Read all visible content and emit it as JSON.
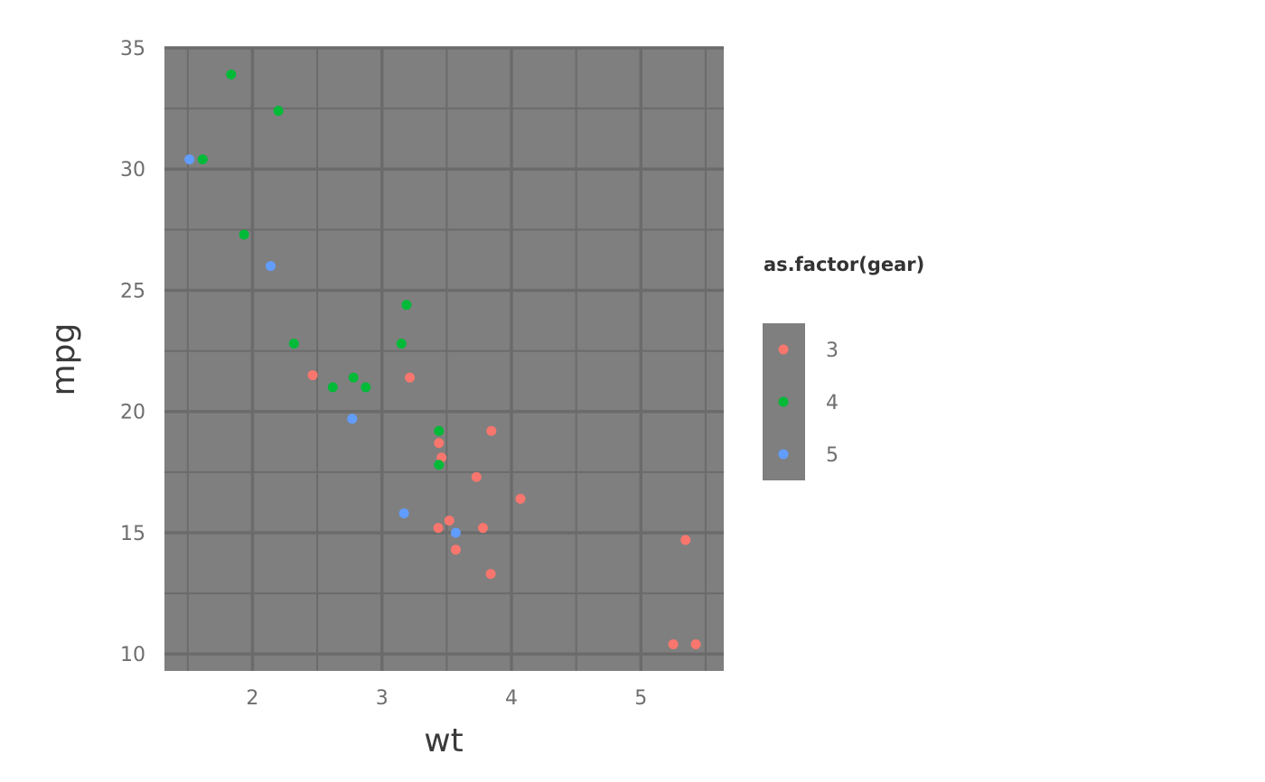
{
  "chart_data": {
    "type": "scatter",
    "title": "",
    "xlabel": "wt",
    "ylabel": "mpg",
    "xlim": [
      1.32,
      5.64
    ],
    "ylim": [
      9.3,
      35.0
    ],
    "x_ticks": [
      2,
      3,
      4,
      5
    ],
    "y_ticks": [
      10,
      15,
      20,
      25,
      30,
      35
    ],
    "x_tick_labels": [
      "2",
      "3",
      "4",
      "5"
    ],
    "y_tick_labels": [
      "10",
      "15",
      "20",
      "25",
      "30",
      "35"
    ],
    "grid": true,
    "panel_background": "#7f7f7f",
    "grid_color": "#6b6b6b",
    "legend": {
      "title": "as.factor(gear)",
      "placement": "right",
      "entries": [
        "3",
        "4",
        "5"
      ]
    },
    "colors": {
      "3": "#f8766d",
      "4": "#00ba38",
      "5": "#619cff"
    },
    "series": [
      {
        "name": "3",
        "points": [
          [
            2.465,
            21.5
          ],
          [
            3.215,
            21.4
          ],
          [
            3.44,
            18.7
          ],
          [
            3.46,
            18.1
          ],
          [
            3.57,
            14.3
          ],
          [
            4.07,
            16.4
          ],
          [
            3.73,
            17.3
          ],
          [
            3.78,
            15.2
          ],
          [
            5.25,
            10.4
          ],
          [
            5.424,
            10.4
          ],
          [
            5.345,
            14.7
          ],
          [
            3.52,
            15.5
          ],
          [
            3.435,
            15.2
          ],
          [
            3.84,
            13.3
          ],
          [
            3.845,
            19.2
          ]
        ]
      },
      {
        "name": "4",
        "points": [
          [
            2.62,
            21.0
          ],
          [
            2.875,
            21.0
          ],
          [
            2.32,
            22.8
          ],
          [
            3.19,
            24.4
          ],
          [
            3.15,
            22.8
          ],
          [
            3.44,
            19.2
          ],
          [
            3.44,
            17.8
          ],
          [
            2.2,
            32.4
          ],
          [
            1.615,
            30.4
          ],
          [
            1.835,
            33.9
          ],
          [
            1.935,
            27.3
          ],
          [
            2.78,
            21.4
          ]
        ]
      },
      {
        "name": "5",
        "points": [
          [
            2.14,
            26.0
          ],
          [
            1.513,
            30.4
          ],
          [
            3.17,
            15.8
          ],
          [
            2.77,
            19.7
          ],
          [
            3.57,
            15.0
          ]
        ]
      }
    ]
  }
}
